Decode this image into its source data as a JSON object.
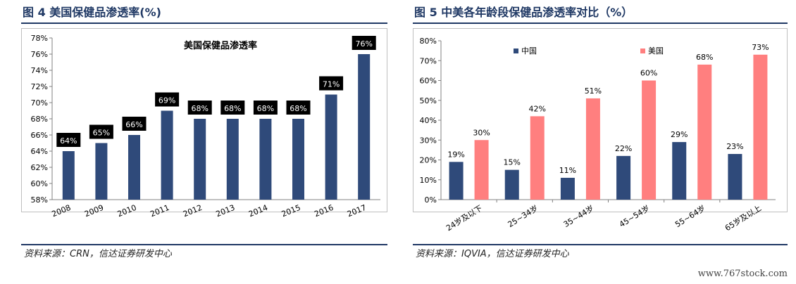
{
  "figures": {
    "fig4_title": "图 4 美国保健品渗透率(%)",
    "fig5_title": "图 5 中美各年龄段保健品渗透率对比（%）",
    "fig4_source": "资料来源：CRN，信达证券研发中心",
    "fig5_source": "资料来源：IQVIA，信达证券研发中心"
  },
  "watermark": "www.767stock.com",
  "colors": {
    "title_color": "#1f3864",
    "navy_bar": "#2f4a7a",
    "pink_bar": "#ff7f7f",
    "label_box": "#000000"
  },
  "chart_data": [
    {
      "type": "bar",
      "title": "美国保健品渗透率",
      "categories": [
        "2008",
        "2009",
        "2010",
        "2011",
        "2012",
        "2013",
        "2014",
        "2015",
        "2016",
        "2017"
      ],
      "values": [
        64,
        65,
        66,
        69,
        68,
        68,
        68,
        68,
        71,
        76
      ],
      "data_labels": [
        "64%",
        "65%",
        "66%",
        "69%",
        "68%",
        "68%",
        "68%",
        "68%",
        "71%",
        "76%"
      ],
      "ylim": [
        58,
        78
      ],
      "yticks": [
        "58%",
        "60%",
        "62%",
        "64%",
        "66%",
        "68%",
        "70%",
        "72%",
        "74%",
        "76%",
        "78%"
      ],
      "grid": false,
      "legend": "none"
    },
    {
      "type": "bar",
      "title": "",
      "categories": [
        "24岁及以下",
        "25~34岁",
        "35~44岁",
        "45~54岁",
        "55~64岁",
        "65岁及以上"
      ],
      "series": [
        {
          "name": "中国",
          "values": [
            19,
            15,
            11,
            22,
            29,
            23
          ],
          "labels": [
            "19%",
            "15%",
            "11%",
            "22%",
            "29%",
            "23%"
          ]
        },
        {
          "name": "美国",
          "values": [
            30,
            42,
            51,
            60,
            68,
            73
          ],
          "labels": [
            "30%",
            "42%",
            "51%",
            "60%",
            "68%",
            "73%"
          ]
        }
      ],
      "ylim": [
        0,
        80
      ],
      "yticks": [
        "0%",
        "10%",
        "20%",
        "30%",
        "40%",
        "50%",
        "60%",
        "70%",
        "80%"
      ],
      "grid": false,
      "legend": "top-center"
    }
  ]
}
